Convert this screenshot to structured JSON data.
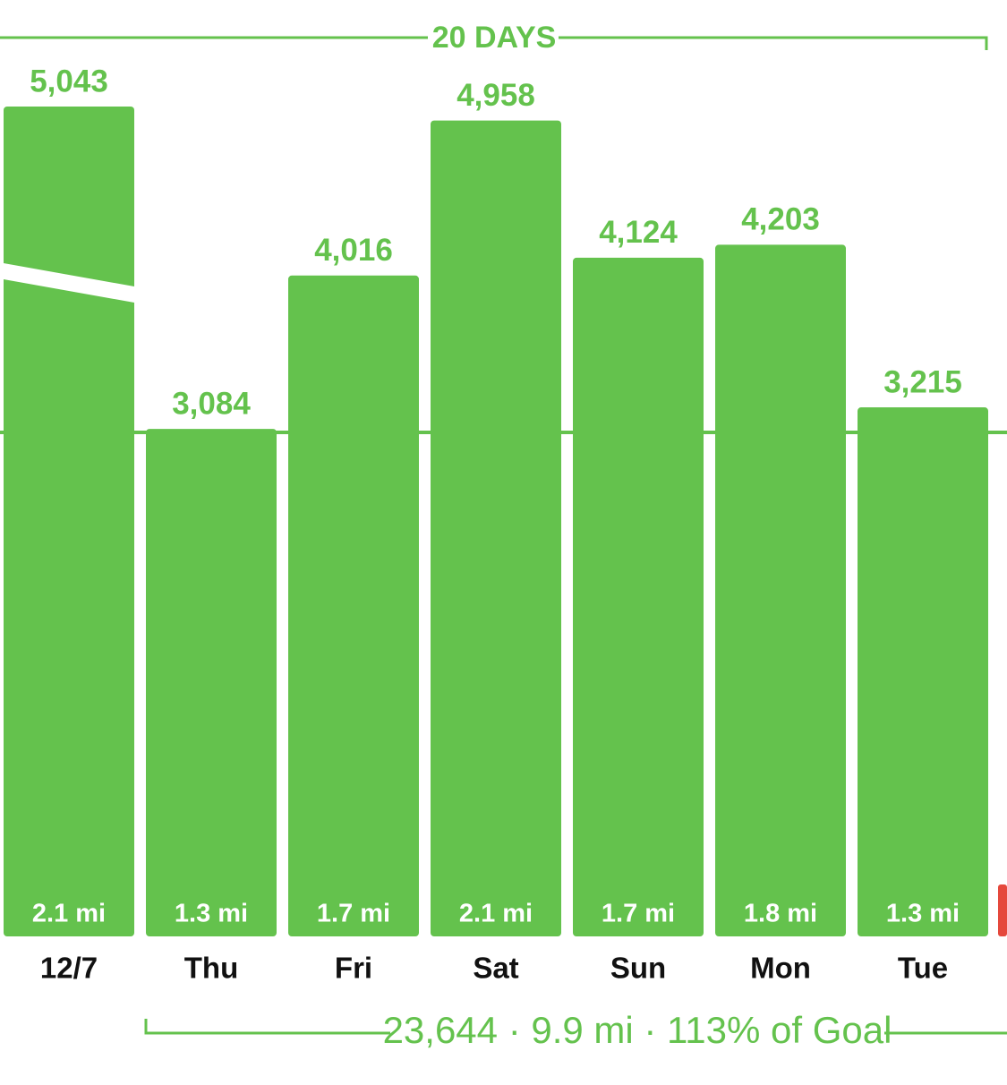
{
  "chart_data": {
    "type": "bar",
    "title": "20 DAYS",
    "summary": "23,644 · 9.9 mi · 113% of Goal",
    "categories": [
      "12/7",
      "Thu",
      "Fri",
      "Sat",
      "Sun",
      "Mon",
      "Tue"
    ],
    "values": [
      5043,
      3084,
      4016,
      4958,
      4124,
      4203,
      3215
    ],
    "value_labels": [
      "5,043",
      "3,084",
      "4,016",
      "4,958",
      "4,124",
      "4,203",
      "3,215"
    ],
    "distances": [
      "2.1 mi",
      "1.3 mi",
      "1.7 mi",
      "2.1 mi",
      "1.7 mi",
      "1.8 mi",
      "1.3 mi"
    ],
    "color": "#64c24d"
  }
}
